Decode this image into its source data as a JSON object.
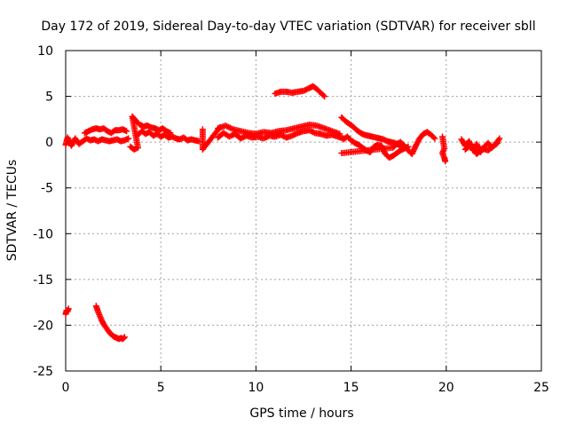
{
  "chart_data": {
    "type": "scatter",
    "title": "Day 172 of 2019, Sidereal Day-to-day VTEC variation (SDTVAR) for receiver sbll",
    "xlabel": "GPS time / hours",
    "ylabel": "SDTVAR / TECUs",
    "xlim": [
      0,
      25
    ],
    "ylim": [
      -25,
      10
    ],
    "xticks": [
      "0",
      "5",
      "10",
      "15",
      "20",
      "25"
    ],
    "yticks": [
      "10",
      "5",
      "0",
      "-5",
      "-10",
      "-15",
      "-20",
      "-25"
    ],
    "grid": true,
    "marker": "plus",
    "point_color": "#ff0000",
    "series": [
      {
        "segments": [
          [
            [
              0.0,
              -0.3
            ],
            [
              0.1,
              0.5
            ],
            [
              0.3,
              -0.4
            ],
            [
              0.5,
              0.4
            ],
            [
              0.7,
              -0.2
            ],
            [
              0.9,
              0.1
            ],
            [
              1.1,
              0.4
            ],
            [
              1.3,
              0.2
            ],
            [
              1.5,
              0.3
            ],
            [
              1.7,
              0.1
            ],
            [
              1.9,
              0.3
            ],
            [
              2.1,
              0.2
            ],
            [
              2.3,
              0.1
            ],
            [
              2.5,
              0.2
            ],
            [
              2.7,
              0.3
            ],
            [
              2.9,
              0.1
            ],
            [
              3.1,
              0.2
            ],
            [
              3.3,
              0.4
            ]
          ],
          [
            [
              1.0,
              1.0
            ],
            [
              1.2,
              1.2
            ],
            [
              1.4,
              1.4
            ],
            [
              1.6,
              1.5
            ],
            [
              1.8,
              1.4
            ],
            [
              2.0,
              1.5
            ],
            [
              2.2,
              1.2
            ],
            [
              2.4,
              1.0
            ],
            [
              2.6,
              1.3
            ],
            [
              2.8,
              1.3
            ],
            [
              3.0,
              1.4
            ],
            [
              3.2,
              1.2
            ]
          ],
          [
            [
              3.4,
              -0.5
            ],
            [
              3.6,
              -0.8
            ],
            [
              3.8,
              -0.6
            ],
            [
              3.5,
              2.8
            ],
            [
              3.7,
              2.3
            ],
            [
              3.9,
              1.9
            ],
            [
              4.1,
              1.7
            ],
            [
              4.3,
              1.8
            ],
            [
              4.5,
              1.6
            ],
            [
              4.7,
              1.5
            ],
            [
              4.9,
              1.3
            ],
            [
              5.1,
              1.5
            ],
            [
              5.3,
              1.2
            ],
            [
              5.5,
              1.0
            ]
          ],
          [
            [
              3.8,
              0.8
            ],
            [
              4.0,
              1.2
            ],
            [
              4.2,
              0.9
            ],
            [
              4.4,
              1.1
            ],
            [
              4.6,
              0.7
            ],
            [
              4.8,
              0.9
            ],
            [
              5.0,
              0.6
            ],
            [
              5.2,
              0.8
            ],
            [
              5.4,
              0.5
            ],
            [
              5.6,
              0.6
            ],
            [
              5.8,
              0.4
            ],
            [
              6.0,
              0.3
            ],
            [
              6.2,
              0.5
            ],
            [
              6.4,
              0.2
            ],
            [
              6.6,
              0.3
            ],
            [
              6.8,
              0.2
            ],
            [
              7.0,
              0.1
            ]
          ],
          [
            [
              7.2,
              1.4
            ],
            [
              7.2,
              -0.8
            ],
            [
              8.1,
              1.6
            ]
          ],
          [
            [
              8.0,
              0.5
            ],
            [
              8.3,
              1.0
            ],
            [
              8.6,
              0.6
            ],
            [
              8.9,
              0.9
            ],
            [
              9.2,
              0.4
            ],
            [
              9.5,
              0.7
            ],
            [
              9.8,
              0.5
            ],
            [
              10.1,
              0.6
            ],
            [
              10.4,
              0.4
            ],
            [
              10.7,
              0.7
            ],
            [
              11.0,
              0.6
            ],
            [
              11.3,
              0.8
            ],
            [
              11.6,
              0.5
            ],
            [
              11.9,
              0.7
            ],
            [
              12.2,
              1.0
            ],
            [
              12.5,
              1.2
            ],
            [
              12.8,
              1.3
            ],
            [
              13.1,
              1.0
            ],
            [
              13.4,
              0.9
            ],
            [
              13.7,
              0.7
            ],
            [
              14.0,
              0.8
            ],
            [
              14.3,
              0.6
            ],
            [
              14.6,
              0.4
            ]
          ],
          [
            [
              8.0,
              1.5
            ],
            [
              8.4,
              1.8
            ],
            [
              8.8,
              1.4
            ],
            [
              9.2,
              1.2
            ],
            [
              9.6,
              1.0
            ],
            [
              10.0,
              0.9
            ],
            [
              10.4,
              1.1
            ],
            [
              10.8,
              1.0
            ],
            [
              11.2,
              1.2
            ],
            [
              11.6,
              1.3
            ],
            [
              12.0,
              1.5
            ],
            [
              12.4,
              1.7
            ],
            [
              12.8,
              1.9
            ],
            [
              13.2,
              1.8
            ],
            [
              13.6,
              1.5
            ],
            [
              14.0,
              1.2
            ],
            [
              14.4,
              0.9
            ]
          ],
          [
            [
              11.0,
              5.3
            ],
            [
              11.3,
              5.5
            ],
            [
              11.6,
              5.5
            ],
            [
              11.9,
              5.4
            ],
            [
              12.2,
              5.5
            ],
            [
              12.5,
              5.6
            ],
            [
              12.8,
              5.9
            ],
            [
              13.0,
              6.1
            ],
            [
              13.2,
              5.8
            ],
            [
              13.4,
              5.4
            ],
            [
              13.6,
              5.0
            ]
          ],
          [
            [
              14.5,
              2.7
            ],
            [
              14.7,
              2.3
            ],
            [
              14.9,
              2.0
            ],
            [
              15.1,
              1.7
            ],
            [
              15.3,
              1.3
            ],
            [
              15.5,
              1.0
            ],
            [
              15.7,
              0.8
            ],
            [
              15.9,
              0.7
            ],
            [
              16.1,
              0.6
            ],
            [
              16.3,
              0.5
            ],
            [
              16.5,
              0.4
            ],
            [
              16.7,
              0.3
            ],
            [
              16.9,
              0.1
            ],
            [
              17.1,
              0.0
            ],
            [
              17.3,
              -0.1
            ],
            [
              17.5,
              -0.3
            ],
            [
              17.7,
              -0.6
            ]
          ],
          [
            [
              14.6,
              0.3
            ],
            [
              14.8,
              0.6
            ],
            [
              15.0,
              0.2
            ],
            [
              15.2,
              -0.1
            ],
            [
              15.4,
              -0.3
            ],
            [
              15.6,
              -0.6
            ],
            [
              15.8,
              -0.9
            ],
            [
              16.0,
              -1.1
            ],
            [
              16.2,
              -0.5
            ],
            [
              16.4,
              -0.3
            ],
            [
              16.6,
              -0.4
            ],
            [
              16.8,
              -1.3
            ],
            [
              17.0,
              -1.7
            ],
            [
              17.2,
              -1.5
            ],
            [
              17.4,
              -1.2
            ],
            [
              17.6,
              -0.9
            ],
            [
              17.8,
              -0.7
            ],
            [
              18.0,
              -0.5
            ]
          ],
          [
            [
              14.5,
              -1.2
            ],
            [
              17.2,
              -0.6
            ],
            [
              17.4,
              -0.2
            ],
            [
              17.6,
              0.0
            ],
            [
              17.8,
              -0.4
            ],
            [
              18.0,
              -0.9
            ],
            [
              18.2,
              -1.3
            ],
            [
              18.4,
              -0.4
            ],
            [
              18.6,
              0.4
            ],
            [
              18.8,
              0.9
            ],
            [
              19.0,
              1.1
            ],
            [
              19.2,
              0.8
            ],
            [
              19.4,
              0.4
            ]
          ],
          [
            [
              19.8,
              0.6
            ],
            [
              19.9,
              -0.7
            ],
            [
              19.8,
              -1.2
            ],
            [
              19.9,
              -1.7
            ],
            [
              19.95,
              -2.1
            ]
          ],
          [
            [
              20.8,
              0.3
            ],
            [
              21.0,
              -0.4
            ],
            [
              21.2,
              0.1
            ],
            [
              21.4,
              -0.9
            ],
            [
              21.6,
              -0.2
            ],
            [
              21.8,
              -1.1
            ],
            [
              22.0,
              -0.5
            ],
            [
              22.2,
              -0.1
            ],
            [
              22.4,
              -0.6
            ],
            [
              22.6,
              -0.2
            ],
            [
              22.8,
              0.4
            ]
          ],
          [
            [
              21.0,
              -0.8
            ],
            [
              21.3,
              -0.3
            ],
            [
              21.6,
              -1.3
            ],
            [
              21.9,
              -0.7
            ],
            [
              22.2,
              -0.9
            ],
            [
              22.5,
              -0.4
            ],
            [
              22.7,
              -0.1
            ]
          ],
          [
            [
              0.0,
              -18.8
            ],
            [
              0.05,
              -18.4
            ],
            [
              0.1,
              -18.5
            ],
            [
              0.15,
              -18.2
            ]
          ],
          [
            [
              1.6,
              -17.9
            ],
            [
              1.7,
              -18.5
            ],
            [
              1.8,
              -19.0
            ],
            [
              1.9,
              -19.5
            ],
            [
              2.0,
              -19.9
            ],
            [
              2.1,
              -20.2
            ],
            [
              2.2,
              -20.5
            ],
            [
              2.3,
              -20.8
            ],
            [
              2.4,
              -21.0
            ],
            [
              2.5,
              -21.2
            ],
            [
              2.6,
              -21.3
            ],
            [
              2.7,
              -21.4
            ],
            [
              2.8,
              -21.5
            ],
            [
              2.9,
              -21.4
            ],
            [
              3.0,
              -21.5
            ],
            [
              3.1,
              -21.3
            ]
          ]
        ]
      }
    ]
  }
}
